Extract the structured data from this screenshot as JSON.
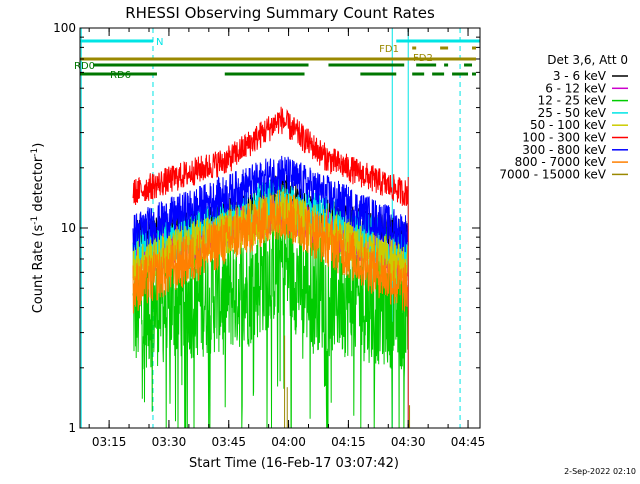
{
  "chart_data": {
    "type": "line",
    "title": "RHESSI Observing Summary Count Rates",
    "xlabel": "Start Time (16-Feb-17 03:07:42)",
    "ylabel": "Count Rate (s⁻¹ detector⁻¹)",
    "ylabel_main": "Count Rate (s",
    "ylabel_sup1": "-1",
    "ylabel_mid": " detector",
    "ylabel_sup2": "-1",
    "ylabel_end": ")",
    "yscale": "log",
    "ylim": [
      1,
      100
    ],
    "xlim": [
      "03:07:42",
      "04:48:00"
    ],
    "ytick_labels": [
      "1",
      "10",
      "100"
    ],
    "xtick_labels": [
      "03:15",
      "03:30",
      "03:45",
      "04:00",
      "04:15",
      "04:30",
      "04:45"
    ],
    "legend_header": "Det 3,6, Att 0",
    "legend_placement": "right",
    "grid": false,
    "data_window": {
      "start": "03:21",
      "end": "04:30"
    },
    "series": [
      {
        "name": "3 - 6 keV",
        "color": "#000000",
        "values": [
          {
            "x": "03:21",
            "y": 9
          },
          {
            "x": "03:50",
            "y": 12
          },
          {
            "x": "03:58",
            "y": 16
          },
          {
            "x": "04:05",
            "y": 12
          },
          {
            "x": "04:29",
            "y": 9
          }
        ]
      },
      {
        "name": "6 - 12 keV",
        "color": "#cc00cc",
        "values": [
          {
            "x": "03:21",
            "y": 7
          },
          {
            "x": "03:58",
            "y": 12
          },
          {
            "x": "04:29",
            "y": 7
          }
        ]
      },
      {
        "name": "12 - 25 keV",
        "color": "#00cc00",
        "values": [
          {
            "x": "03:21",
            "y": 3.8
          },
          {
            "x": "03:50",
            "y": 5
          },
          {
            "x": "03:58",
            "y": 7
          },
          {
            "x": "04:05",
            "y": 5
          },
          {
            "x": "04:29",
            "y": 3.8
          }
        ]
      },
      {
        "name": "25 - 50 keV",
        "color": "#00e5e5",
        "values": [
          {
            "x": "03:21",
            "y": 7.5
          },
          {
            "x": "03:58",
            "y": 14
          },
          {
            "x": "04:29",
            "y": 7.5
          }
        ]
      },
      {
        "name": "50 - 100 keV",
        "color": "#cccc00",
        "values": [
          {
            "x": "03:21",
            "y": 6.5
          },
          {
            "x": "03:58",
            "y": 12
          },
          {
            "x": "04:29",
            "y": 6.5
          }
        ]
      },
      {
        "name": "100 - 300 keV",
        "color": "#ff0000",
        "values": [
          {
            "x": "03:21",
            "y": 15
          },
          {
            "x": "03:45",
            "y": 22
          },
          {
            "x": "03:58",
            "y": 35
          },
          {
            "x": "04:10",
            "y": 22
          },
          {
            "x": "04:29",
            "y": 15
          }
        ]
      },
      {
        "name": "300 - 800 keV",
        "color": "#0000ff",
        "values": [
          {
            "x": "03:21",
            "y": 9.5
          },
          {
            "x": "03:58",
            "y": 19
          },
          {
            "x": "04:29",
            "y": 9.5
          }
        ]
      },
      {
        "name": "800 - 7000 keV",
        "color": "#ff8000",
        "values": [
          {
            "x": "03:21",
            "y": 5
          },
          {
            "x": "03:58",
            "y": 12
          },
          {
            "x": "04:29",
            "y": 5
          }
        ]
      },
      {
        "name": "7000 - 15000 keV",
        "color": "#9a8800",
        "values": [
          {
            "x": "03:21",
            "y": 1
          },
          {
            "x": "03:58",
            "y": 1
          },
          {
            "x": "04:29",
            "y": 1
          }
        ]
      }
    ],
    "flag_bars": [
      {
        "label": "N",
        "color": "#00e5e5",
        "segments": [
          [
            "03:07:42",
            "03:26"
          ],
          [
            "04:27",
            "04:48"
          ]
        ]
      },
      {
        "label": "FD1",
        "color": "#9a8800",
        "segments": [
          [
            "04:31",
            "04:32"
          ],
          [
            "04:38",
            "04:40"
          ],
          [
            "04:46",
            "04:47"
          ]
        ]
      },
      {
        "label": "FD2",
        "color": "#9a8800",
        "segments": [
          [
            "03:07:42",
            "04:47"
          ]
        ]
      },
      {
        "label": "RD0",
        "color": "#007700",
        "segments": [
          [
            "03:11",
            "04:05"
          ],
          [
            "04:10",
            "04:29"
          ],
          [
            "04:32",
            "04:37"
          ],
          [
            "04:39",
            "04:40"
          ],
          [
            "04:44",
            "04:46"
          ]
        ]
      },
      {
        "label": "RD6",
        "color": "#007700",
        "segments": [
          [
            "03:07:42",
            "03:27"
          ],
          [
            "03:44",
            "04:04"
          ],
          [
            "04:18",
            "04:27"
          ],
          [
            "04:31",
            "04:34"
          ],
          [
            "04:36",
            "04:39"
          ],
          [
            "04:41",
            "04:45"
          ],
          [
            "04:46",
            "04:47"
          ]
        ]
      }
    ],
    "vertical_markers": [
      {
        "x": "03:08",
        "color": "#00e5e5",
        "style": "solid"
      },
      {
        "x": "03:26",
        "color": "#00e5e5",
        "style": "dashed"
      },
      {
        "x": "04:26",
        "color": "#00e5e5",
        "style": "solid"
      },
      {
        "x": "04:30",
        "color": "#00e5e5",
        "style": "solid"
      },
      {
        "x": "04:43",
        "color": "#00e5e5",
        "style": "dashed"
      }
    ]
  },
  "footer": {
    "timestamp": "2-Sep-2022 02:10"
  }
}
